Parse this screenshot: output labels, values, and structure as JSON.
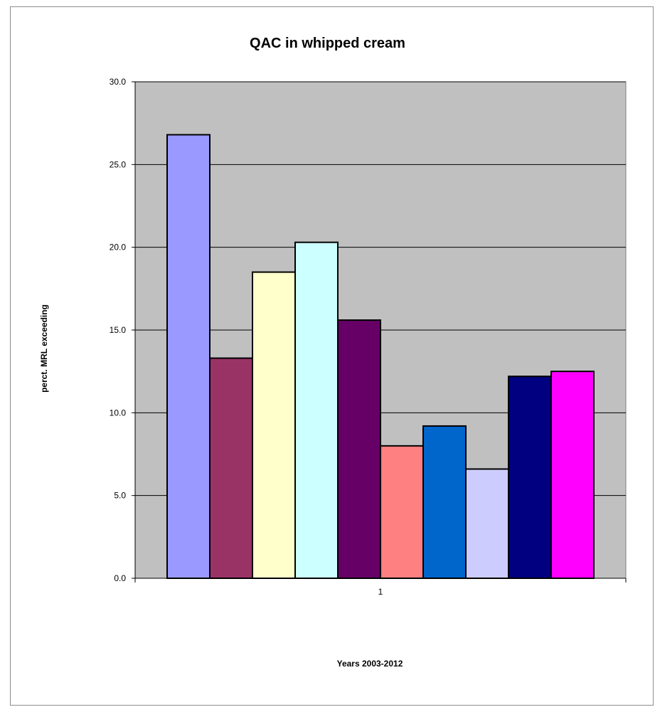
{
  "chart_data": {
    "type": "bar",
    "title": "QAC in whipped cream",
    "xlabel": "Years 2003-2012",
    "ylabel": "perct. MRL exceeding",
    "categories": [
      "1"
    ],
    "ylim": [
      0,
      30
    ],
    "yticks": [
      "0.0",
      "5.0",
      "10.0",
      "15.0",
      "20.0",
      "25.0",
      "30.0"
    ],
    "grid": true,
    "legend": "none",
    "plot_background": "#c0c0c0",
    "series": [
      {
        "values": [
          26.8
        ],
        "color": "#9999ff"
      },
      {
        "values": [
          13.3
        ],
        "color": "#993366"
      },
      {
        "values": [
          18.5
        ],
        "color": "#ffffcc"
      },
      {
        "values": [
          20.3
        ],
        "color": "#ccffff"
      },
      {
        "values": [
          15.6
        ],
        "color": "#660066"
      },
      {
        "values": [
          8.0
        ],
        "color": "#ff8080"
      },
      {
        "values": [
          9.2
        ],
        "color": "#0066cc"
      },
      {
        "values": [
          6.6
        ],
        "color": "#ccccff"
      },
      {
        "values": [
          12.2
        ],
        "color": "#000080"
      },
      {
        "values": [
          12.5
        ],
        "color": "#ff00ff"
      }
    ]
  }
}
